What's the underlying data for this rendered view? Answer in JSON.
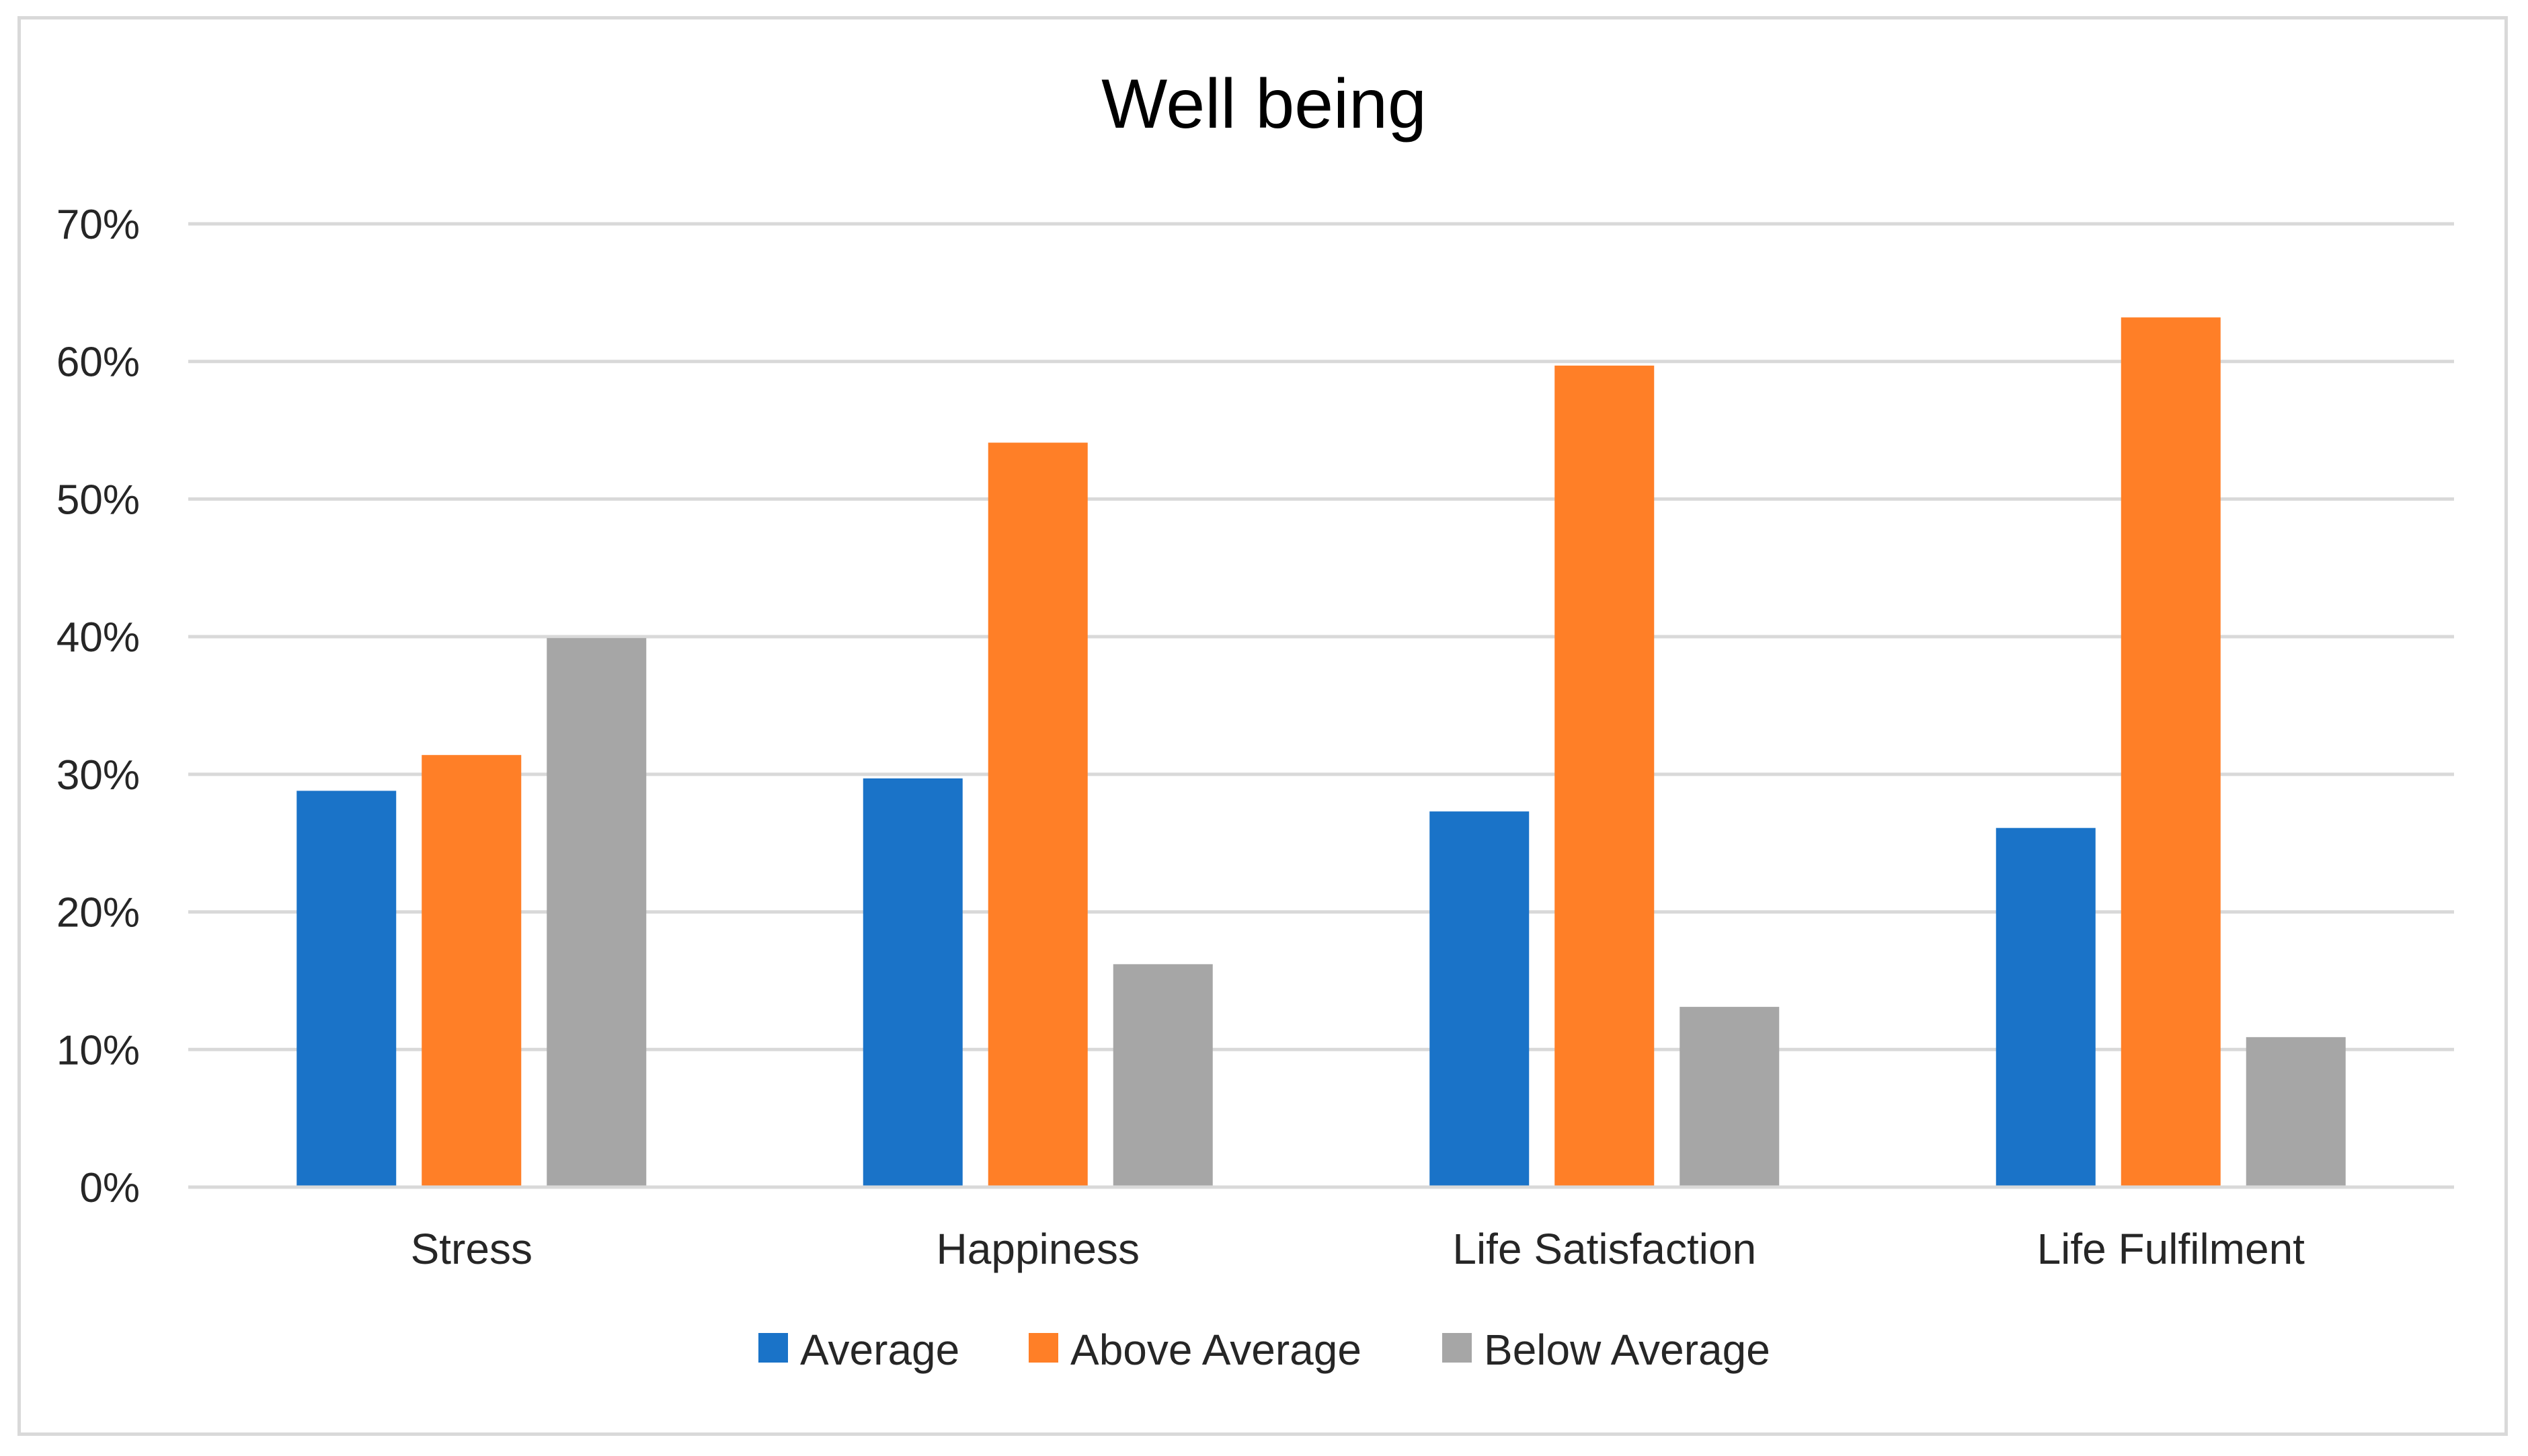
{
  "chart_data": {
    "type": "bar",
    "title": "Well being",
    "xlabel": "",
    "ylabel": "",
    "categories": [
      "Stress",
      "Happiness",
      "Life Satisfaction",
      "Life Fulfilment"
    ],
    "series": [
      {
        "name": "Average",
        "color": "#1a73c8",
        "values": [
          28.8,
          29.7,
          27.3,
          26.1
        ]
      },
      {
        "name": "Above Average",
        "color": "#ff7f27",
        "values": [
          31.4,
          54.1,
          59.7,
          63.2
        ]
      },
      {
        "name": "Below Average",
        "color": "#a6a6a6",
        "values": [
          39.9,
          16.2,
          13.1,
          10.9
        ]
      }
    ],
    "ylim": [
      0,
      70
    ],
    "yticks": [
      0,
      10,
      20,
      30,
      40,
      50,
      60,
      70
    ],
    "ytick_labels": [
      "0%",
      "10%",
      "20%",
      "30%",
      "40%",
      "50%",
      "60%",
      "70%"
    ],
    "grid": true,
    "legend_position": "bottom"
  }
}
